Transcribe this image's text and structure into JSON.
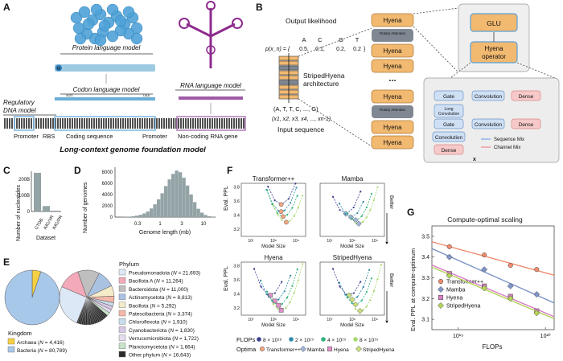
{
  "panel_a": {
    "letter": "A",
    "protein_model": "Protein language model",
    "codon_model": "Codon language model",
    "rna_model": "RNA language model",
    "regulatory_model_line1": "Regulatory",
    "regulatory_model_line2": "DNA model",
    "seq_start": "AUG",
    "seq_stop": "UAA",
    "protein_start": "M",
    "labels": [
      "Promoter",
      "RBS",
      "Coding sequence",
      "Promoter",
      "Non-coding RNA gene"
    ],
    "foundation_title": "Long-context genome foundation model"
  },
  "panel_b": {
    "letter": "B",
    "output_likelihood": "Output likelihood",
    "bases": [
      "A",
      "C",
      "G",
      "T"
    ],
    "prob_label": "p(x_n) = {",
    "prob_values": [
      "0.5,",
      "0.1,",
      "0.2,",
      "0.2"
    ],
    "prob_close": "}",
    "architecture_line1": "StripedHyena",
    "architecture_line2": "architecture",
    "input_tokens": "(A, T, T, C, ..., G)",
    "input_vars": "(x1, x2, x3, x4, ..., xn-1)",
    "input_sequence": "Input sequence",
    "stack": [
      "Hyena",
      "Rotary Attention",
      "Hyena",
      "Hyena",
      "...",
      "Hyena",
      "Rotary Attention",
      "Hyena",
      "Hyena"
    ],
    "glu": "GLU",
    "hyena_operator_line1": "Hyena",
    "hyena_operator_line2": "operator",
    "op_boxes": {
      "gate1": "Gate",
      "conv1": "Convolution",
      "dense1": "Dense",
      "long_conv_line1": "Long",
      "long_conv_line2": "Convolution",
      "gate2": "Gate",
      "conv2": "Convolution",
      "dense2": "Dense",
      "conv3": "Convolution",
      "dense3": "Dense",
      "x_sym": "x"
    },
    "legend_sequence": "Sequence Mix",
    "legend_channel": "Channel Mix"
  },
  "panel_c": {
    "letter": "C",
    "ylabel": "Number of nucleotides",
    "xlabel": "Dataset",
    "yticks": [
      "0",
      "100B",
      "200B"
    ],
    "categories": [
      "GTDB",
      "IMG/VR",
      "IMG/PR"
    ],
    "values": [
      250,
      35,
      5
    ]
  },
  "panel_d": {
    "letter": "D",
    "ylabel": "Number of genomes",
    "xlabel": "Genome length (mb)",
    "yticks": [
      "0",
      "2000",
      "4000",
      "6000",
      "8000"
    ],
    "xticks": [
      "0.3",
      "1",
      "3",
      "10"
    ],
    "hist": [
      30,
      50,
      90,
      150,
      260,
      420,
      650,
      1000,
      1550,
      2300,
      3200,
      4300,
      5600,
      6800,
      7800,
      8400,
      8100,
      7100,
      5700,
      4100,
      2700,
      1500,
      800,
      380,
      150,
      50
    ]
  },
  "panel_e": {
    "letter": "E",
    "kingdom_title": "Kingdom",
    "kingdom": [
      {
        "name": "Archaea",
        "n": "4,416",
        "value": 4416,
        "color": "#f5d042"
      },
      {
        "name": "Bacteria",
        "n": "80,789",
        "value": 80789,
        "color": "#a8c8ea"
      }
    ],
    "phylum_title": "Phylum",
    "phyla": [
      {
        "name": "Pseudomonadota",
        "n": "21,693",
        "value": 21693,
        "color": "#dde8f7"
      },
      {
        "name": "Bacillota A",
        "n": "11,264",
        "value": 11264,
        "color": "#f3a9b8"
      },
      {
        "name": "Bacteroidota",
        "n": "11,000",
        "value": 11000,
        "color": "#bfbfbf"
      },
      {
        "name": "Actinomycetota",
        "n": "8,813",
        "value": 8813,
        "color": "#a9c2e2"
      },
      {
        "name": "Bacillota",
        "n": "5,292",
        "value": 5292,
        "color": "#f4ebc9"
      },
      {
        "name": "Patescibacteria",
        "n": "3,374",
        "value": 3374,
        "color": "#f3b8a9"
      },
      {
        "name": "Chloroflexota",
        "n": "1,910",
        "value": 1910,
        "color": "#c8dcec"
      },
      {
        "name": "Cyanobacteriota",
        "n": "1,830",
        "value": 1830,
        "color": "#d9c7e6"
      },
      {
        "name": "Verrucomicrobiota",
        "n": "1,722",
        "value": 1722,
        "color": "#e5dcef"
      },
      {
        "name": "Planctomycetota",
        "n": "1,664",
        "value": 1664,
        "color": "#c8e3c8"
      },
      {
        "name": "Other phylum",
        "n": "16,643",
        "value": 16643,
        "color": "#2b2b2b"
      }
    ]
  },
  "panel_f": {
    "letter": "F",
    "subplots": [
      "Transformer++",
      "Mamba",
      "Hyena",
      "StripedHyena"
    ],
    "ylabel": "Eval. PPL",
    "xlabel": "Model Size",
    "yticks": [
      "3.2",
      "3.4",
      "3.6",
      "3.8"
    ],
    "xticks": [
      "10^7",
      "10^8",
      "10^9"
    ],
    "better": "Better",
    "flops_label": "FLOPs",
    "flops": [
      {
        "label": "8 × 10^18",
        "color": "#3a3e8f"
      },
      {
        "label": "2 × 10^19",
        "color": "#2f8aa8"
      },
      {
        "label": "4 × 10^19",
        "color": "#2fb27a"
      },
      {
        "label": "8 × 10^19",
        "color": "#a6d96a"
      }
    ],
    "optima_label": "Optima",
    "optima": [
      {
        "label": "Transformer++",
        "color": "#f4a582",
        "shape": "circle"
      },
      {
        "label": "Mamba",
        "color": "#9fb4d8",
        "shape": "diamond"
      },
      {
        "label": "Hyena",
        "color": "#e08fc9",
        "shape": "square"
      },
      {
        "label": "StripedHyena",
        "color": "#c9e07a",
        "shape": "diamond"
      }
    ]
  },
  "panel_g": {
    "letter": "G",
    "title": "Compute-optimal scaling",
    "ylabel": "Eval. PPL at compute-optimum",
    "xlabel": "FLOPs",
    "yticks": [
      "3.1",
      "3.2",
      "3.3",
      "3.4",
      "3.5"
    ],
    "xticks": [
      "10^19",
      "10^20"
    ],
    "chart_data": {
      "type": "scatter",
      "title": "Compute-optimal scaling",
      "xlabel": "FLOPs",
      "ylabel": "Eval. PPL at compute-optimum",
      "x_log10": [
        18.9,
        19.3,
        19.6,
        19.9
      ],
      "ylim": [
        3.05,
        3.55
      ],
      "series": [
        {
          "name": "Transformer++",
          "color": "#f08a6b",
          "shape": "circle",
          "values": [
            3.45,
            3.41,
            3.36,
            3.34
          ]
        },
        {
          "name": "Mamba",
          "color": "#7f96c9",
          "shape": "diamond",
          "values": [
            3.4,
            3.34,
            3.26,
            3.22
          ]
        },
        {
          "name": "Hyena",
          "color": "#d77fc4",
          "shape": "square",
          "values": [
            3.32,
            3.26,
            3.21,
            3.14
          ]
        },
        {
          "name": "StripedHyena",
          "color": "#b5d45a",
          "shape": "diamond",
          "values": [
            3.31,
            3.25,
            3.2,
            3.13
          ]
        }
      ]
    }
  }
}
